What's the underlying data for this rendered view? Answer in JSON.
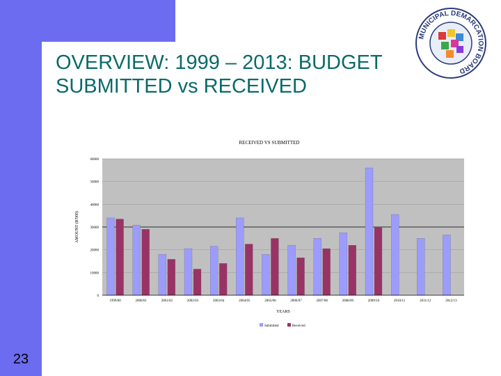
{
  "slide": {
    "title": "OVERVIEW: 1999 – 2013: BUDGET SUBMITTED vs RECEIVED",
    "number": "23",
    "logo_text": "MUNICIPAL DEMARCATION BOARD"
  },
  "colors": {
    "accent": "#6c6cf0",
    "title": "#0a6a6a",
    "plot_bg": "#c0c0c0",
    "submitted": "#9c9cff",
    "received": "#993366"
  },
  "chart_data": {
    "type": "bar",
    "title": "RECEIVED VS SUBMITTED",
    "xlabel": "YEARS",
    "ylabel": "AMOUNT (R'000)",
    "categories": [
      "1999/00",
      "2000/01",
      "2001/02",
      "2002/03",
      "2003/04",
      "2004/05",
      "2005/06",
      "2006/07",
      "2007/08",
      "2008/09",
      "2009/10",
      "2010/11",
      "2011/12",
      "2012/13"
    ],
    "series": [
      {
        "name": "Submitted",
        "values": [
          34000,
          30800,
          18000,
          20500,
          21500,
          34000,
          18000,
          22000,
          25000,
          27500,
          56000,
          35500,
          25000,
          26500
        ]
      },
      {
        "name": "Received",
        "values": [
          33500,
          29000,
          15800,
          11500,
          14000,
          22500,
          25000,
          16500,
          20500,
          22000,
          30000,
          null,
          null,
          null
        ]
      }
    ],
    "ylim": [
      0,
      60000
    ],
    "yticks": [
      "0",
      "10000",
      "20000",
      "30000",
      "40000",
      "50000",
      "60000"
    ],
    "grid": true,
    "legend_position": "bottom"
  }
}
